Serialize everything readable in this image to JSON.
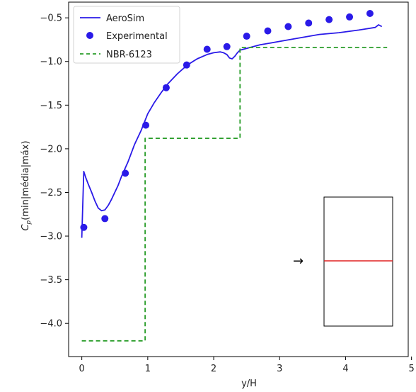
{
  "chart_data": {
    "type": "line",
    "xlabel": "y/H",
    "ylabel": "C_p(min|média|máx)",
    "ylabel_base": "C",
    "ylabel_sub": "p",
    "ylabel_rest": "(min|média|máx)",
    "xlim": [
      -0.2,
      4.95
    ],
    "ylim": [
      -4.38,
      -0.32
    ],
    "xticks": [
      0,
      1,
      2,
      3,
      4,
      5
    ],
    "xtick_labels": [
      "0",
      "1",
      "2",
      "3",
      "4",
      "5"
    ],
    "yticks": [
      -0.5,
      -1.0,
      -1.5,
      -2.0,
      -2.5,
      -3.0,
      -3.5,
      -4.0
    ],
    "ytick_labels": [
      "−0.5",
      "−1.0",
      "−1.5",
      "−2.0",
      "−2.5",
      "−3.0",
      "−3.5",
      "−4.0"
    ],
    "legend_position": "top-left",
    "grid": false,
    "series": [
      {
        "name": "AeroSim",
        "style": "line",
        "color": "#2a1ae8",
        "x": [
          0.0,
          0.03,
          0.06,
          0.1,
          0.15,
          0.2,
          0.25,
          0.3,
          0.35,
          0.4,
          0.45,
          0.5,
          0.55,
          0.6,
          0.7,
          0.8,
          0.9,
          1.0,
          1.1,
          1.2,
          1.3,
          1.45,
          1.6,
          1.75,
          1.9,
          2.0,
          2.1,
          2.15,
          2.2,
          2.24,
          2.28,
          2.32,
          2.36,
          2.4,
          2.5,
          2.7,
          3.0,
          3.3,
          3.6,
          3.9,
          4.2,
          4.45,
          4.5,
          4.55
        ],
        "y": [
          -3.02,
          -2.26,
          -2.33,
          -2.41,
          -2.5,
          -2.6,
          -2.68,
          -2.71,
          -2.7,
          -2.65,
          -2.58,
          -2.5,
          -2.42,
          -2.32,
          -2.15,
          -1.95,
          -1.79,
          -1.6,
          -1.47,
          -1.36,
          -1.26,
          -1.14,
          -1.04,
          -0.97,
          -0.92,
          -0.9,
          -0.89,
          -0.9,
          -0.92,
          -0.96,
          -0.97,
          -0.94,
          -0.9,
          -0.87,
          -0.85,
          -0.81,
          -0.77,
          -0.73,
          -0.69,
          -0.67,
          -0.64,
          -0.61,
          -0.58,
          -0.6
        ]
      },
      {
        "name": "Experimental",
        "style": "scatter",
        "color": "#2a1ae8",
        "x": [
          0.03,
          0.35,
          0.66,
          0.97,
          1.28,
          1.59,
          1.9,
          2.2,
          2.5,
          2.82,
          3.13,
          3.44,
          3.75,
          4.06,
          4.37
        ],
        "y": [
          -2.9,
          -2.8,
          -2.28,
          -1.73,
          -1.3,
          -1.04,
          -0.86,
          -0.83,
          -0.71,
          -0.65,
          -0.6,
          -0.56,
          -0.52,
          -0.49,
          -0.45
        ]
      },
      {
        "name": "NBR-6123",
        "style": "dashed-step",
        "color": "#2a9d2a",
        "x": [
          0.0,
          0.96,
          0.96,
          2.4,
          2.4,
          4.63
        ],
        "y": [
          -4.2,
          -4.2,
          -1.88,
          -1.88,
          -0.84,
          -0.84
        ]
      }
    ]
  },
  "inset": {
    "arrow_glyph": "→",
    "line_color": "#e02020"
  }
}
